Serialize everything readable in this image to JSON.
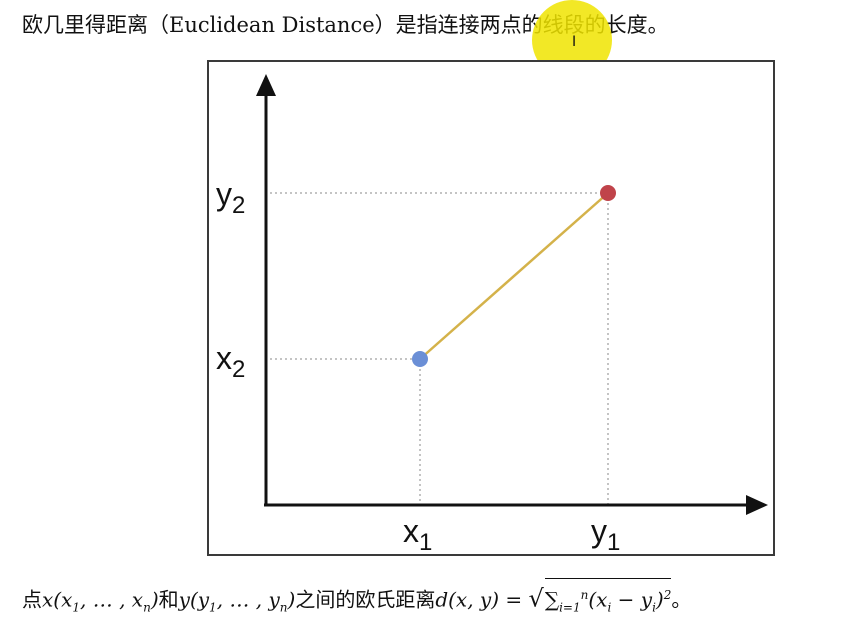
{
  "header": {
    "title_cn_1": "欧几里得距离（",
    "title_en": "Euclidean Distance",
    "title_cn_2": "）是指连接两点的线段的长度。"
  },
  "diagram": {
    "y_tick_top": "y",
    "y_tick_top_sub": "2",
    "y_tick_mid": "x",
    "y_tick_mid_sub": "2",
    "x_tick_left": "x",
    "x_tick_left_sub": "1",
    "x_tick_right": "y",
    "x_tick_right_sub": "1",
    "colors": {
      "point_x": "#6b8fd6",
      "point_y": "#c0434a",
      "segment": "#d4b24a",
      "axis": "#111111",
      "guide": "#888888"
    }
  },
  "formula": {
    "prefix": "点",
    "x_point": "x(x",
    "x_sub1": "1",
    "x_mid": ", … , x",
    "x_subn": "n",
    "x_close": ")",
    "and": "和",
    "y_point": "y(y",
    "y_sub1": "1",
    "y_mid": ", … , y",
    "y_subn": "n",
    "y_close": ")",
    "between": "之间的欧氏距离",
    "d_expr": "d(x, y) = ",
    "sum_symbol": "∑",
    "sum_sub": "i=1",
    "sum_sup": "n",
    "inner": "(x",
    "inner_sub_i": "i",
    "inner_minus": " − y",
    "inner_sub_i2": "i",
    "inner_close": ")",
    "power": "2",
    "end": "。"
  }
}
